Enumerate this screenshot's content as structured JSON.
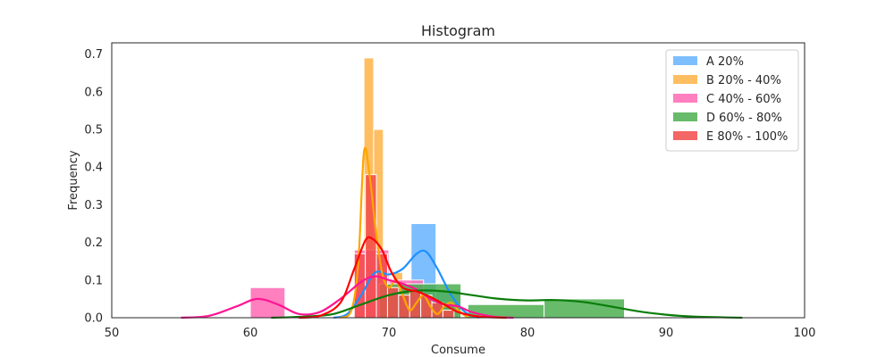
{
  "chart_data": {
    "type": "histogram",
    "title": "Histogram",
    "xlabel": "Consume",
    "ylabel": "Frequency",
    "xlim": [
      50,
      100
    ],
    "ylim": [
      0,
      0.73
    ],
    "xticks": [
      50,
      60,
      70,
      80,
      90,
      100
    ],
    "yticks": [
      0.0,
      0.1,
      0.2,
      0.3,
      0.4,
      0.5,
      0.6,
      0.7
    ],
    "grid": false,
    "legend_position": "top-right",
    "series": [
      {
        "name": "A 20%",
        "bar_color": "#66b3ff",
        "line_color": "#1e90ff",
        "bins": [
          {
            "x0": 68.0,
            "x1": 69.8,
            "h": 0.1
          },
          {
            "x0": 69.8,
            "x1": 71.6,
            "h": 0.075
          },
          {
            "x0": 71.6,
            "x1": 73.4,
            "h": 0.25
          },
          {
            "x0": 73.4,
            "x1": 75.2,
            "h": 0.075
          }
        ],
        "kde": [
          [
            66.0,
            0.0
          ],
          [
            67.0,
            0.01
          ],
          [
            68.0,
            0.06
          ],
          [
            69.0,
            0.12
          ],
          [
            70.0,
            0.115
          ],
          [
            71.0,
            0.13
          ],
          [
            72.0,
            0.17
          ],
          [
            72.7,
            0.175
          ],
          [
            73.5,
            0.13
          ],
          [
            74.5,
            0.06
          ],
          [
            75.5,
            0.015
          ],
          [
            76.5,
            0.0
          ]
        ]
      },
      {
        "name": "B 20% - 40%",
        "bar_color": "#ffb347",
        "line_color": "#ffa500",
        "bins": [
          {
            "x0": 67.5,
            "x1": 68.2,
            "h": 0.02
          },
          {
            "x0": 68.2,
            "x1": 68.9,
            "h": 0.69
          },
          {
            "x0": 68.9,
            "x1": 69.6,
            "h": 0.5
          },
          {
            "x0": 69.6,
            "x1": 70.3,
            "h": 0.08
          },
          {
            "x0": 70.3,
            "x1": 71.0,
            "h": 0.12
          },
          {
            "x0": 71.0,
            "x1": 71.7,
            "h": 0.08
          },
          {
            "x0": 71.7,
            "x1": 72.4,
            "h": 0.04
          },
          {
            "x0": 72.4,
            "x1": 73.1,
            "h": 0.04
          },
          {
            "x0": 73.1,
            "x1": 73.8,
            "h": 0.02
          },
          {
            "x0": 73.8,
            "x1": 74.5,
            "h": 0.02
          },
          {
            "x0": 74.5,
            "x1": 75.2,
            "h": 0.02
          }
        ],
        "kde": [
          [
            66.5,
            0.0
          ],
          [
            67.3,
            0.02
          ],
          [
            67.8,
            0.15
          ],
          [
            68.2,
            0.44
          ],
          [
            68.6,
            0.38
          ],
          [
            69.0,
            0.25
          ],
          [
            69.5,
            0.12
          ],
          [
            70.0,
            0.08
          ],
          [
            70.5,
            0.1
          ],
          [
            71.0,
            0.06
          ],
          [
            71.5,
            0.02
          ],
          [
            72.0,
            0.04
          ],
          [
            72.5,
            0.06
          ],
          [
            73.0,
            0.03
          ],
          [
            73.5,
            0.01
          ],
          [
            74.0,
            0.03
          ],
          [
            74.5,
            0.04
          ],
          [
            75.0,
            0.02
          ],
          [
            75.7,
            0.0
          ]
        ]
      },
      {
        "name": "C 40% - 60%",
        "bar_color": "#ff69b4",
        "line_color": "#ff1493",
        "bins": [
          {
            "x0": 60.0,
            "x1": 62.5,
            "h": 0.08
          },
          {
            "x0": 67.5,
            "x1": 70.0,
            "h": 0.18
          },
          {
            "x0": 70.0,
            "x1": 72.5,
            "h": 0.1
          },
          {
            "x0": 72.5,
            "x1": 75.0,
            "h": 0.04
          }
        ],
        "kde": [
          [
            55.0,
            0.0
          ],
          [
            57.0,
            0.005
          ],
          [
            59.0,
            0.03
          ],
          [
            60.5,
            0.05
          ],
          [
            62.0,
            0.035
          ],
          [
            63.5,
            0.01
          ],
          [
            65.0,
            0.015
          ],
          [
            66.5,
            0.05
          ],
          [
            68.0,
            0.095
          ],
          [
            69.0,
            0.11
          ],
          [
            70.0,
            0.1
          ],
          [
            71.0,
            0.09
          ],
          [
            72.0,
            0.075
          ],
          [
            73.0,
            0.05
          ],
          [
            74.0,
            0.035
          ],
          [
            75.0,
            0.03
          ],
          [
            76.0,
            0.015
          ],
          [
            77.5,
            0.003
          ],
          [
            79.0,
            0.0
          ]
        ]
      },
      {
        "name": "D 60% - 80%",
        "bar_color": "#4caf50",
        "line_color": "#0a7d0a",
        "bins": [
          {
            "x0": 69.3,
            "x1": 75.2,
            "h": 0.09
          },
          {
            "x0": 75.7,
            "x1": 81.2,
            "h": 0.035
          },
          {
            "x0": 81.2,
            "x1": 87.0,
            "h": 0.05
          }
        ],
        "kde": [
          [
            61.5,
            0.0
          ],
          [
            64.0,
            0.003
          ],
          [
            66.0,
            0.01
          ],
          [
            68.0,
            0.035
          ],
          [
            70.0,
            0.06
          ],
          [
            72.0,
            0.072
          ],
          [
            74.0,
            0.07
          ],
          [
            76.0,
            0.06
          ],
          [
            78.0,
            0.05
          ],
          [
            80.0,
            0.046
          ],
          [
            82.0,
            0.047
          ],
          [
            84.0,
            0.042
          ],
          [
            86.0,
            0.03
          ],
          [
            88.0,
            0.017
          ],
          [
            90.0,
            0.008
          ],
          [
            92.0,
            0.003
          ],
          [
            95.5,
            0.0
          ]
        ]
      },
      {
        "name": "E 80% - 100%",
        "bar_color": "#f24a4a",
        "line_color": "#ff0000",
        "bins": [
          {
            "x0": 67.5,
            "x1": 68.3,
            "h": 0.17
          },
          {
            "x0": 68.3,
            "x1": 69.1,
            "h": 0.38
          },
          {
            "x0": 69.1,
            "x1": 69.9,
            "h": 0.17
          },
          {
            "x0": 69.9,
            "x1": 70.7,
            "h": 0.08
          },
          {
            "x0": 70.7,
            "x1": 71.5,
            "h": 0.06
          },
          {
            "x0": 71.5,
            "x1": 72.3,
            "h": 0.07
          },
          {
            "x0": 72.3,
            "x1": 73.1,
            "h": 0.06
          },
          {
            "x0": 73.1,
            "x1": 73.9,
            "h": 0.04
          },
          {
            "x0": 73.9,
            "x1": 74.7,
            "h": 0.02
          }
        ],
        "kde": [
          [
            63.5,
            0.0
          ],
          [
            65.0,
            0.005
          ],
          [
            66.5,
            0.04
          ],
          [
            67.5,
            0.13
          ],
          [
            68.3,
            0.205
          ],
          [
            68.8,
            0.21
          ],
          [
            69.5,
            0.18
          ],
          [
            70.2,
            0.12
          ],
          [
            71.0,
            0.08
          ],
          [
            72.0,
            0.07
          ],
          [
            73.0,
            0.055
          ],
          [
            74.0,
            0.035
          ],
          [
            75.0,
            0.015
          ],
          [
            76.5,
            0.003
          ],
          [
            78.5,
            0.0
          ]
        ]
      }
    ]
  }
}
